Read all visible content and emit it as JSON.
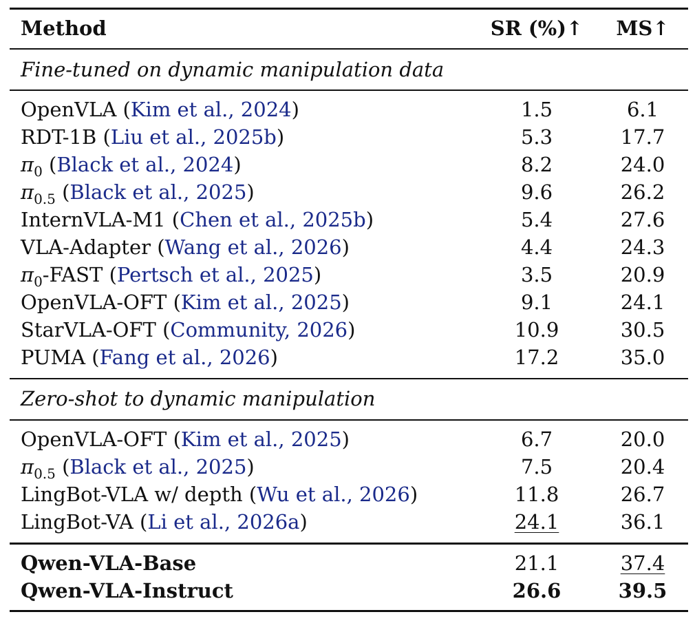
{
  "header": {
    "method": "Method",
    "sr": "SR (%)↑",
    "ms": "MS↑"
  },
  "groups": [
    {
      "title": "Fine-tuned on dynamic manipulation data",
      "rows": [
        {
          "method": "OpenVLA",
          "cite_author": "Kim et al.",
          "cite_year": "2024",
          "sr": "1.5",
          "ms": "6.1"
        },
        {
          "method": "RDT-1B",
          "cite_author": "Liu et al.",
          "cite_year": "2025b",
          "sr": "5.3",
          "ms": "17.7"
        },
        {
          "method_pi": "π",
          "method_sub": "0",
          "method_suffix": "",
          "cite_author": "Black et al.",
          "cite_year": "2024",
          "sr": "8.2",
          "ms": "24.0"
        },
        {
          "method_pi": "π",
          "method_sub": "0.5",
          "method_suffix": "",
          "cite_author": "Black et al.",
          "cite_year": "2025",
          "sr": "9.6",
          "ms": "26.2"
        },
        {
          "method": "InternVLA-M1",
          "cite_author": "Chen et al.",
          "cite_year": "2025b",
          "sr": "5.4",
          "ms": "27.6"
        },
        {
          "method": "VLA-Adapter",
          "cite_author": "Wang et al.",
          "cite_year": "2026",
          "sr": "4.4",
          "ms": "24.3"
        },
        {
          "method_pi": "π",
          "method_sub": "0",
          "method_suffix": "-FAST",
          "cite_author": "Pertsch et al.",
          "cite_year": "2025",
          "sr": "3.5",
          "ms": "20.9"
        },
        {
          "method": "OpenVLA-OFT",
          "cite_author": "Kim et al.",
          "cite_year": "2025",
          "sr": "9.1",
          "ms": "24.1"
        },
        {
          "method": "StarVLA-OFT",
          "cite_author": "Community",
          "cite_year": "2026",
          "sr": "10.9",
          "ms": "30.5"
        },
        {
          "method": "PUMA",
          "cite_author": "Fang et al.",
          "cite_year": "2026",
          "sr": "17.2",
          "ms": "35.0"
        }
      ]
    },
    {
      "title": "Zero-shot to dynamic manipulation",
      "rows": [
        {
          "method": "OpenVLA-OFT",
          "cite_author": "Kim et al.",
          "cite_year": "2025",
          "sr": "6.7",
          "ms": "20.0"
        },
        {
          "method_pi": "π",
          "method_sub": "0.5",
          "method_suffix": "",
          "cite_author": "Black et al.",
          "cite_year": "2025",
          "sr": "7.5",
          "ms": "20.4"
        },
        {
          "method": "LingBot-VLA w/ depth",
          "cite_author": "Wu et al.",
          "cite_year": "2026",
          "sr": "11.8",
          "ms": "26.7"
        },
        {
          "method": "LingBot-VA",
          "cite_author": "Li et al.",
          "cite_year": "2026a",
          "sr": "24.1",
          "ms": "36.1"
        }
      ]
    }
  ],
  "ours": [
    {
      "method": "Qwen-VLA-Base",
      "sr": "21.1",
      "ms": "37.4"
    },
    {
      "method": "Qwen-VLA-Instruct",
      "sr": "26.6",
      "ms": "39.5"
    }
  ]
}
